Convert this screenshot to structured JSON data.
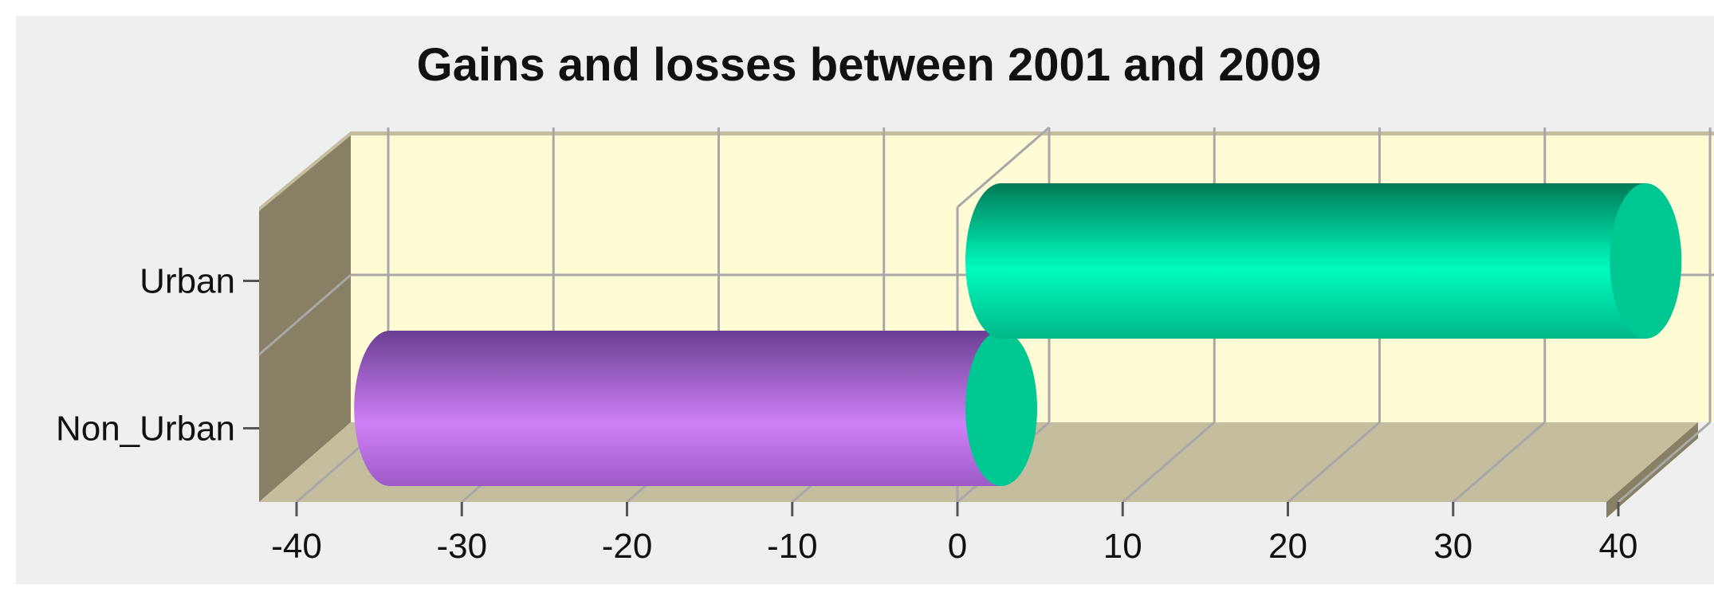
{
  "chart_data": {
    "type": "bar",
    "orientation": "horizontal",
    "style": "3d-cylinder",
    "title": "Gains and losses between 2001 and 2009",
    "categories": [
      "Urban",
      "Non_Urban"
    ],
    "values": [
      39,
      -37
    ],
    "xlabel": "",
    "ylabel": "",
    "xlim": [
      -40,
      40
    ],
    "xticks": [
      "-40",
      "-30",
      "-20",
      "-10",
      "0",
      "10",
      "20",
      "30",
      "40"
    ],
    "grid": true,
    "legend": "none",
    "colors": {
      "positive": "#00f0b8",
      "positive_cap": "#00c893",
      "negative": "#c87cf0",
      "negative_dark": "#6a3f93",
      "plot_back": "#fffbd5",
      "plot_floor": "#c4bd9e",
      "plot_side": "#878065",
      "grid": "#a8a8a8"
    }
  }
}
